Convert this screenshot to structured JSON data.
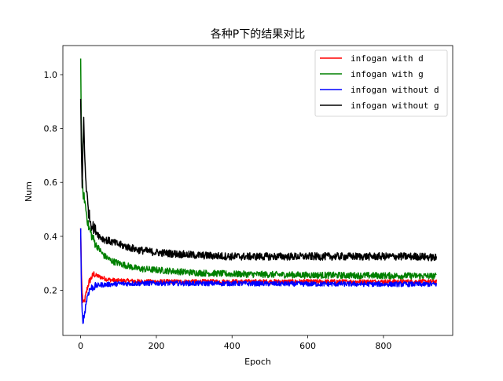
{
  "chart_data": {
    "type": "line",
    "title": "各种P下的结果对比",
    "xlabel": "Epoch",
    "ylabel": "Num",
    "xlim": [
      -47,
      983
    ],
    "ylim": [
      0.032,
      1.108
    ],
    "xticks": [
      0,
      200,
      400,
      600,
      800
    ],
    "xtick_labels": [
      "0",
      "200",
      "400",
      "600",
      "800"
    ],
    "yticks": [
      0.2,
      0.4,
      0.6,
      0.8,
      1.0
    ],
    "ytick_labels": [
      "0.2",
      "0.4",
      "0.6",
      "0.8",
      "1.0"
    ],
    "grid": false,
    "legend_position": "upper right",
    "series": [
      {
        "name": "infogan with d",
        "color": "#ff0000",
        "x": [
          0,
          2,
          4,
          6,
          8,
          10,
          12,
          15,
          18,
          22,
          26,
          30,
          35,
          40,
          50,
          60,
          70,
          80,
          100,
          120,
          150,
          180,
          200,
          250,
          300,
          350,
          400,
          500,
          600,
          700,
          800,
          900,
          940
        ],
        "y": [
          0.43,
          0.26,
          0.19,
          0.16,
          0.15,
          0.16,
          0.17,
          0.19,
          0.21,
          0.23,
          0.24,
          0.25,
          0.26,
          0.255,
          0.25,
          0.245,
          0.24,
          0.238,
          0.235,
          0.235,
          0.233,
          0.232,
          0.232,
          0.232,
          0.232,
          0.232,
          0.232,
          0.232,
          0.232,
          0.232,
          0.232,
          0.232,
          0.232
        ],
        "noise": 0.008
      },
      {
        "name": "infogan with g",
        "color": "#008000",
        "x": [
          0,
          2,
          4,
          6,
          8,
          10,
          12,
          15,
          20,
          25,
          30,
          40,
          50,
          60,
          80,
          100,
          150,
          200,
          250,
          300,
          400,
          500,
          600,
          700,
          800,
          900,
          940
        ],
        "y": [
          1.06,
          0.75,
          0.62,
          0.56,
          0.55,
          0.54,
          0.52,
          0.49,
          0.44,
          0.42,
          0.4,
          0.37,
          0.35,
          0.33,
          0.31,
          0.3,
          0.28,
          0.275,
          0.27,
          0.265,
          0.26,
          0.258,
          0.256,
          0.255,
          0.254,
          0.253,
          0.252
        ],
        "noise": 0.012
      },
      {
        "name": "infogan without d",
        "color": "#0000ff",
        "x": [
          0,
          2,
          4,
          6,
          8,
          10,
          12,
          15,
          20,
          25,
          30,
          40,
          50,
          60,
          80,
          100,
          150,
          200,
          300,
          400,
          500,
          600,
          700,
          800,
          900,
          940
        ],
        "y": [
          0.43,
          0.2,
          0.12,
          0.09,
          0.095,
          0.11,
          0.13,
          0.16,
          0.19,
          0.205,
          0.21,
          0.215,
          0.22,
          0.22,
          0.222,
          0.224,
          0.225,
          0.226,
          0.225,
          0.225,
          0.224,
          0.223,
          0.223,
          0.222,
          0.222,
          0.222
        ],
        "noise": 0.009
      },
      {
        "name": "infogan without g",
        "color": "#000000",
        "x": [
          0,
          2,
          4,
          6,
          8,
          10,
          12,
          15,
          20,
          25,
          30,
          40,
          50,
          60,
          80,
          100,
          150,
          200,
          250,
          300,
          400,
          500,
          600,
          700,
          800,
          900,
          940
        ],
        "y": [
          0.91,
          0.72,
          0.58,
          0.72,
          0.84,
          0.72,
          0.66,
          0.58,
          0.5,
          0.46,
          0.44,
          0.42,
          0.4,
          0.39,
          0.38,
          0.37,
          0.35,
          0.34,
          0.335,
          0.33,
          0.325,
          0.325,
          0.325,
          0.325,
          0.325,
          0.325,
          0.32
        ],
        "noise": 0.014
      }
    ]
  }
}
